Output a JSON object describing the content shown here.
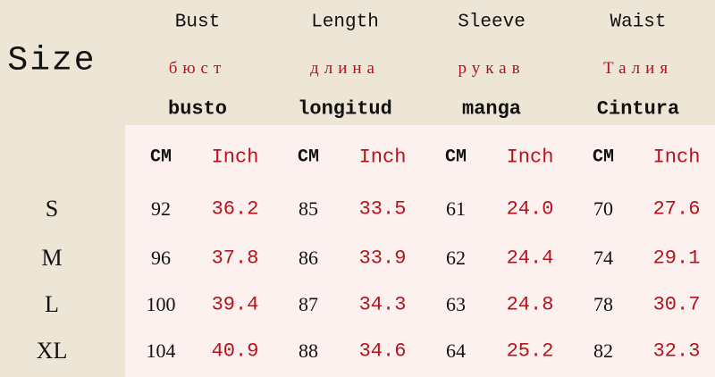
{
  "title": "Size",
  "headers": [
    {
      "en": "Bust",
      "ru": "бюст",
      "es": "busto"
    },
    {
      "en": "Length",
      "ru": "длина",
      "es": "longitud"
    },
    {
      "en": "Sleeve",
      "ru": "рукав",
      "es": "manga"
    },
    {
      "en": "Waist",
      "ru": "Талия",
      "es": "Cintura"
    }
  ],
  "units": {
    "cm": "CM",
    "inch": "Inch"
  },
  "rows": [
    {
      "size": "S",
      "values": [
        "92",
        "36.2",
        "85",
        "33.5",
        "61",
        "24.0",
        "70",
        "27.6"
      ]
    },
    {
      "size": "M",
      "values": [
        "96",
        "37.8",
        "86",
        "33.9",
        "62",
        "24.4",
        "74",
        "29.1"
      ]
    },
    {
      "size": "L",
      "values": [
        "100",
        "39.4",
        "87",
        "34.3",
        "63",
        "24.8",
        "78",
        "30.7"
      ]
    },
    {
      "size": "XL",
      "values": [
        "104",
        "40.9",
        "88",
        "34.6",
        "64",
        "25.2",
        "82",
        "32.3"
      ]
    }
  ],
  "colors": {
    "background": "#ede5d6",
    "table_background": "#fcf1ef",
    "accent_red": "#b5121b"
  }
}
